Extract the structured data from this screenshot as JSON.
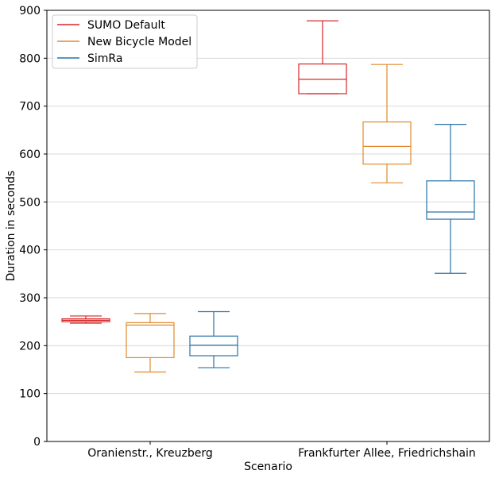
{
  "chart_data": {
    "type": "box",
    "xlabel": "Scenario",
    "ylabel": "Duration in seconds",
    "ylim": [
      0,
      900
    ],
    "yticks": [
      0,
      100,
      200,
      300,
      400,
      500,
      600,
      700,
      800,
      900
    ],
    "grid": "horizontal",
    "legend_position": "top-left",
    "categories": [
      "Oranienstr., Kreuzberg",
      "Frankfurter Allee, Friedrichshain"
    ],
    "series": [
      {
        "name": "SUMO Default",
        "color": "#d62728",
        "boxes": [
          {
            "whisker_low": 247,
            "q1": 250,
            "median": 253,
            "q3": 256,
            "whisker_high": 262
          },
          {
            "whisker_low": 726,
            "q1": 726,
            "median": 756,
            "q3": 788,
            "whisker_high": 878
          }
        ]
      },
      {
        "name": "New Bicycle Model",
        "color": "#e08a2c",
        "boxes": [
          {
            "whisker_low": 145,
            "q1": 175,
            "median": 243,
            "q3": 248,
            "whisker_high": 267
          },
          {
            "whisker_low": 540,
            "q1": 579,
            "median": 616,
            "q3": 667,
            "whisker_high": 787
          }
        ]
      },
      {
        "name": "SimRa",
        "color": "#2a73a6",
        "boxes": [
          {
            "whisker_low": 154,
            "q1": 179,
            "median": 201,
            "q3": 220,
            "whisker_high": 271
          },
          {
            "whisker_low": 351,
            "q1": 464,
            "median": 479,
            "q3": 544,
            "whisker_high": 662
          }
        ]
      }
    ]
  }
}
